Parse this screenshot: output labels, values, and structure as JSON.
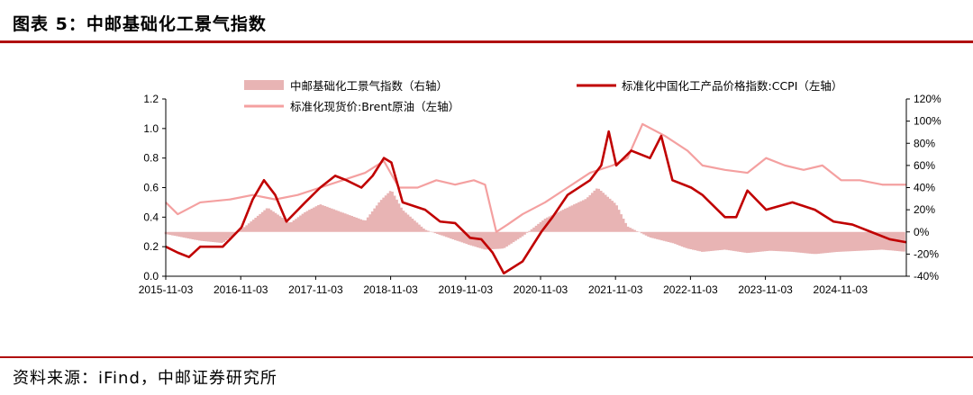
{
  "figure": {
    "title": "图表 5：中邮基础化工景气指数",
    "source": "资料来源：iFind，中邮证券研究所"
  },
  "colors": {
    "ccpi": "#c00000",
    "brent": "#f4a0a0",
    "prosperity": "#e8b4b4",
    "rule": "#b01010"
  },
  "chart_data": {
    "type": "line",
    "x_ticks": [
      "2015-11-03",
      "2016-11-03",
      "2017-11-03",
      "2018-11-03",
      "2019-11-03",
      "2020-11-03",
      "2021-11-03",
      "2022-11-03",
      "2023-11-03",
      "2024-11-03"
    ],
    "x_domain": [
      2015.84,
      2025.72
    ],
    "y_left": {
      "ticks": [
        "0.0",
        "0.2",
        "0.4",
        "0.6",
        "0.8",
        "1.0",
        "1.2"
      ],
      "range": [
        0,
        1.2
      ]
    },
    "y_right": {
      "ticks": [
        "-40%",
        "-20%",
        "0%",
        "20%",
        "40%",
        "60%",
        "80%",
        "100%",
        "120%"
      ],
      "range": [
        -40,
        120
      ]
    },
    "series": [
      {
        "name": "中邮基础化工景气指数（右轴）",
        "kind": "area",
        "axis": "right",
        "unit": "%",
        "points": [
          [
            2015.84,
            -2
          ],
          [
            2016.0,
            -4
          ],
          [
            2016.3,
            -8
          ],
          [
            2016.6,
            -10
          ],
          [
            2016.9,
            5
          ],
          [
            2017.2,
            22
          ],
          [
            2017.5,
            8
          ],
          [
            2017.7,
            18
          ],
          [
            2017.9,
            25
          ],
          [
            2018.3,
            15
          ],
          [
            2018.5,
            10
          ],
          [
            2018.7,
            28
          ],
          [
            2018.85,
            38
          ],
          [
            2019.0,
            20
          ],
          [
            2019.3,
            2
          ],
          [
            2019.6,
            -5
          ],
          [
            2019.9,
            -12
          ],
          [
            2020.1,
            -16
          ],
          [
            2020.35,
            -15
          ],
          [
            2020.6,
            -4
          ],
          [
            2020.9,
            12
          ],
          [
            2021.2,
            22
          ],
          [
            2021.45,
            30
          ],
          [
            2021.6,
            40
          ],
          [
            2021.85,
            25
          ],
          [
            2022.0,
            5
          ],
          [
            2022.3,
            -5
          ],
          [
            2022.6,
            -10
          ],
          [
            2022.8,
            -15
          ],
          [
            2023.0,
            -18
          ],
          [
            2023.3,
            -16
          ],
          [
            2023.6,
            -19
          ],
          [
            2023.9,
            -17
          ],
          [
            2024.2,
            -18
          ],
          [
            2024.5,
            -20
          ],
          [
            2024.8,
            -18
          ],
          [
            2025.1,
            -17
          ],
          [
            2025.4,
            -16
          ],
          [
            2025.72,
            -18
          ]
        ]
      },
      {
        "name": "标准化中国化工产品价格指数:CCPI（左轴）",
        "kind": "line",
        "axis": "left",
        "points": [
          [
            2015.84,
            0.2
          ],
          [
            2016.0,
            0.16
          ],
          [
            2016.15,
            0.13
          ],
          [
            2016.3,
            0.2
          ],
          [
            2016.6,
            0.2
          ],
          [
            2016.85,
            0.33
          ],
          [
            2017.0,
            0.52
          ],
          [
            2017.15,
            0.65
          ],
          [
            2017.3,
            0.55
          ],
          [
            2017.45,
            0.37
          ],
          [
            2017.7,
            0.5
          ],
          [
            2017.9,
            0.6
          ],
          [
            2018.1,
            0.68
          ],
          [
            2018.25,
            0.65
          ],
          [
            2018.45,
            0.6
          ],
          [
            2018.6,
            0.68
          ],
          [
            2018.75,
            0.8
          ],
          [
            2018.85,
            0.77
          ],
          [
            2019.0,
            0.5
          ],
          [
            2019.3,
            0.45
          ],
          [
            2019.5,
            0.37
          ],
          [
            2019.7,
            0.36
          ],
          [
            2019.9,
            0.26
          ],
          [
            2020.05,
            0.25
          ],
          [
            2020.2,
            0.16
          ],
          [
            2020.35,
            0.02
          ],
          [
            2020.6,
            0.1
          ],
          [
            2020.85,
            0.3
          ],
          [
            2021.0,
            0.4
          ],
          [
            2021.2,
            0.55
          ],
          [
            2021.5,
            0.65
          ],
          [
            2021.65,
            0.75
          ],
          [
            2021.75,
            0.98
          ],
          [
            2021.85,
            0.75
          ],
          [
            2022.05,
            0.85
          ],
          [
            2022.3,
            0.8
          ],
          [
            2022.45,
            0.95
          ],
          [
            2022.6,
            0.65
          ],
          [
            2022.85,
            0.6
          ],
          [
            2023.0,
            0.55
          ],
          [
            2023.3,
            0.4
          ],
          [
            2023.45,
            0.4
          ],
          [
            2023.6,
            0.58
          ],
          [
            2023.85,
            0.45
          ],
          [
            2024.2,
            0.5
          ],
          [
            2024.5,
            0.45
          ],
          [
            2024.75,
            0.37
          ],
          [
            2025.0,
            0.35
          ],
          [
            2025.25,
            0.3
          ],
          [
            2025.5,
            0.25
          ],
          [
            2025.72,
            0.23
          ]
        ]
      },
      {
        "name": "标准化现货价:Brent原油（左轴）",
        "kind": "line",
        "axis": "left",
        "points": [
          [
            2015.84,
            0.5
          ],
          [
            2016.0,
            0.42
          ],
          [
            2016.3,
            0.5
          ],
          [
            2016.7,
            0.52
          ],
          [
            2017.0,
            0.55
          ],
          [
            2017.3,
            0.52
          ],
          [
            2017.6,
            0.55
          ],
          [
            2017.9,
            0.6
          ],
          [
            2018.2,
            0.65
          ],
          [
            2018.5,
            0.7
          ],
          [
            2018.75,
            0.78
          ],
          [
            2018.95,
            0.6
          ],
          [
            2019.2,
            0.6
          ],
          [
            2019.45,
            0.65
          ],
          [
            2019.7,
            0.62
          ],
          [
            2019.95,
            0.65
          ],
          [
            2020.1,
            0.62
          ],
          [
            2020.25,
            0.3
          ],
          [
            2020.4,
            0.35
          ],
          [
            2020.6,
            0.42
          ],
          [
            2020.9,
            0.5
          ],
          [
            2021.2,
            0.6
          ],
          [
            2021.5,
            0.7
          ],
          [
            2021.8,
            0.75
          ],
          [
            2022.0,
            0.8
          ],
          [
            2022.2,
            1.03
          ],
          [
            2022.5,
            0.95
          ],
          [
            2022.8,
            0.85
          ],
          [
            2023.0,
            0.75
          ],
          [
            2023.3,
            0.72
          ],
          [
            2023.6,
            0.7
          ],
          [
            2023.85,
            0.8
          ],
          [
            2024.1,
            0.75
          ],
          [
            2024.35,
            0.72
          ],
          [
            2024.6,
            0.75
          ],
          [
            2024.85,
            0.65
          ],
          [
            2025.1,
            0.65
          ],
          [
            2025.4,
            0.62
          ],
          [
            2025.72,
            0.62
          ]
        ]
      }
    ],
    "legend": {
      "area_label": "中邮基础化工景气指数（右轴）",
      "ccpi_label": "标准化中国化工产品价格指数:CCPI（左轴）",
      "brent_label": "标准化现货价:Brent原油（左轴）",
      "placement": "top"
    }
  }
}
